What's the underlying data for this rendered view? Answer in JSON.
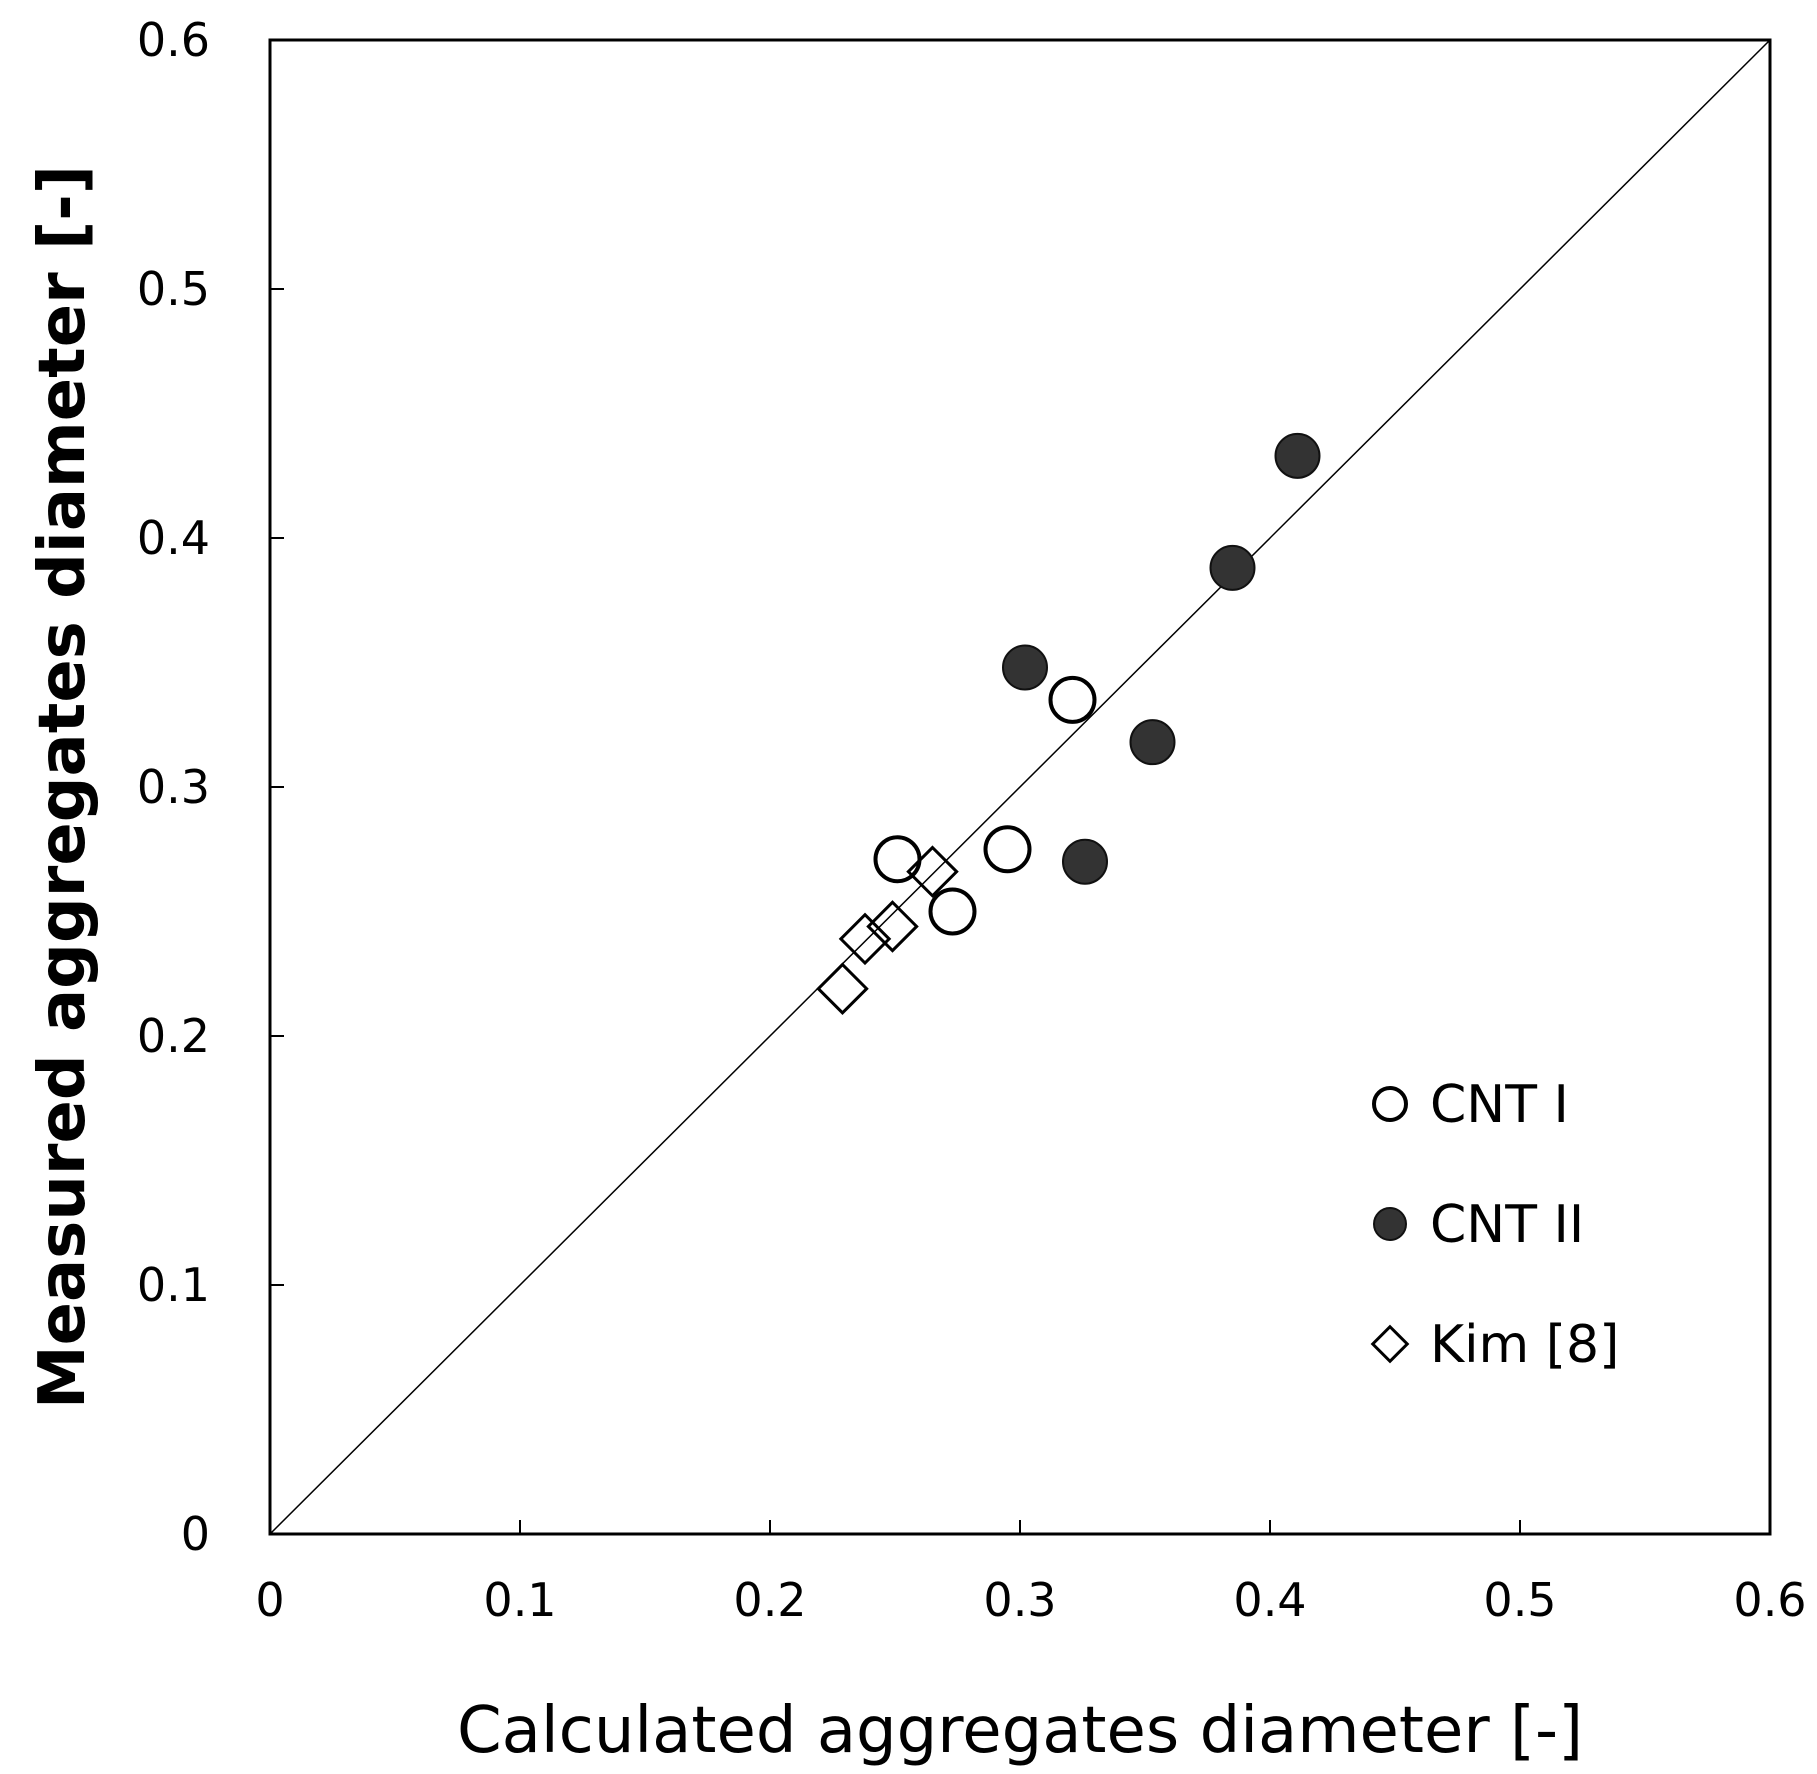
{
  "chart_data": {
    "type": "scatter",
    "title": "",
    "xlabel": "Calculated aggregates diameter [-]",
    "ylabel": "Measured aggregates diameter [-]",
    "xlim": [
      0,
      0.6
    ],
    "ylim": [
      0,
      0.6
    ],
    "xticks": [
      0,
      0.1,
      0.2,
      0.3,
      0.4,
      0.5,
      0.6
    ],
    "yticks": [
      0,
      0.1,
      0.2,
      0.3,
      0.4,
      0.5,
      0.6
    ],
    "xtick_labels": [
      "0",
      "0.1",
      "0.2",
      "0.3",
      "0.4",
      "0.5",
      "0.6"
    ],
    "ytick_labels": [
      "0",
      "0.1",
      "0.2",
      "0.3",
      "0.4",
      "0.5",
      "0.6"
    ],
    "grid": false,
    "legend_position": "lower-right",
    "reference_line": {
      "name": "y = x",
      "x": [
        0,
        0.6
      ],
      "y": [
        0,
        0.6
      ]
    },
    "series": [
      {
        "name": "CNT I",
        "marker": "open-circle",
        "color": "#000000",
        "x": [
          0.251,
          0.273,
          0.295,
          0.321
        ],
        "y": [
          0.271,
          0.25,
          0.275,
          0.335
        ]
      },
      {
        "name": "CNT II",
        "marker": "filled-circle",
        "color": "#333333",
        "x": [
          0.302,
          0.326,
          0.353,
          0.385,
          0.411
        ],
        "y": [
          0.348,
          0.27,
          0.318,
          0.388,
          0.433
        ]
      },
      {
        "name": "Kim [8]",
        "marker": "open-diamond",
        "color": "#000000",
        "x": [
          0.229,
          0.238,
          0.249,
          0.265
        ],
        "y": [
          0.219,
          0.239,
          0.244,
          0.266
        ]
      }
    ]
  }
}
